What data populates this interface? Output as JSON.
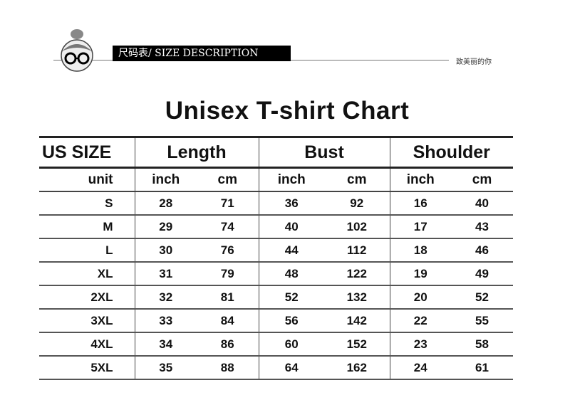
{
  "header": {
    "banner": "尺码表/ SIZE DESCRIPTION",
    "slogan": "致美丽的你"
  },
  "title": "Unisex T-shirt Chart",
  "table": {
    "columns": [
      "US SIZE",
      "Length",
      "Bust",
      "Shoulder"
    ],
    "unit_label": "unit",
    "units": [
      "inch",
      "cm",
      "inch",
      "cm",
      "inch",
      "cm"
    ],
    "rows": [
      [
        "S",
        "28",
        "71",
        "36",
        "92",
        "16",
        "40"
      ],
      [
        "M",
        "29",
        "74",
        "40",
        "102",
        "17",
        "43"
      ],
      [
        "L",
        "30",
        "76",
        "44",
        "112",
        "18",
        "46"
      ],
      [
        "XL",
        "31",
        "79",
        "48",
        "122",
        "19",
        "49"
      ],
      [
        "2XL",
        "32",
        "81",
        "52",
        "132",
        "20",
        "52"
      ],
      [
        "3XL",
        "33",
        "84",
        "56",
        "142",
        "22",
        "55"
      ],
      [
        "4XL",
        "34",
        "86",
        "60",
        "152",
        "23",
        "58"
      ],
      [
        "5XL",
        "35",
        "88",
        "64",
        "162",
        "24",
        "61"
      ]
    ]
  }
}
